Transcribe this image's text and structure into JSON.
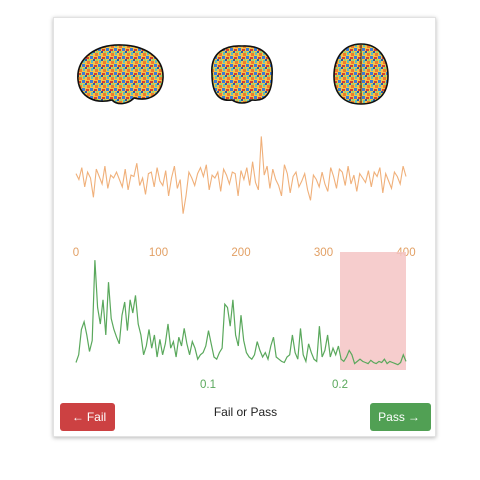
{
  "actions": {
    "fail_label": "Fail",
    "pass_label": "Pass",
    "prompt": "Fail or Pass",
    "fail_icon": "arrow-left-icon",
    "pass_icon": "arrow-right-icon"
  },
  "colors": {
    "timeseries": "#f0b07a",
    "timeseries_axis": "#e2a065",
    "spectrum": "#5aa85c",
    "highlight": "#f4c4c4",
    "fail": "#cc4142",
    "pass": "#51a054"
  },
  "brain_views": [
    "sagittal",
    "coronal",
    "axial"
  ],
  "chart_data": [
    {
      "type": "line",
      "name": "timeseries",
      "xlim": [
        0,
        400
      ],
      "x_ticks": [
        "0",
        "100",
        "200",
        "300",
        "400"
      ],
      "x_tick_values": [
        0,
        100,
        200,
        300,
        400
      ],
      "ylim": [
        -3.5,
        3.5
      ],
      "y": [
        0.5,
        0.1,
        0.9,
        -0.4,
        0.6,
        0.2,
        -1.1,
        0.8,
        0.3,
        -0.2,
        1.0,
        -0.5,
        0.4,
        0.2,
        0.6,
        0.1,
        -0.4,
        0.8,
        -0.6,
        0.4,
        0.3,
        1.2,
        -0.3,
        0.2,
        -0.9,
        0.5,
        0.6,
        -0.4,
        0.9,
        0.0,
        -0.3,
        0.7,
        -1.0,
        0.2,
        1.0,
        -0.5,
        0.1,
        -2.2,
        -1.0,
        0.6,
        0.2,
        -0.3,
        0.5,
        0.9,
        0.3,
        1.1,
        -0.6,
        0.4,
        0.2,
        0.6,
        -0.7,
        0.8,
        0.4,
        -0.2,
        0.6,
        0.5,
        -1.0,
        0.7,
        0.1,
        0.9,
        -0.3,
        1.3,
        -0.1,
        -0.6,
        3.0,
        0.4,
        1.0,
        -0.5,
        0.8,
        0.1,
        -0.3,
        -1.0,
        1.1,
        0.5,
        -0.8,
        0.3,
        0.6,
        -0.4,
        0.0,
        0.5,
        -0.6,
        -1.3,
        0.4,
        0.1,
        -0.4,
        0.6,
        -0.2,
        -0.7,
        0.9,
        0.3,
        -0.5,
        0.8,
        0.6,
        -0.3,
        1.0,
        -0.2,
        0.4,
        -0.7,
        0.5,
        0.2,
        -0.1,
        0.7,
        -0.4,
        0.6,
        0.3,
        0.9,
        -0.8,
        0.5,
        0.0,
        -0.5,
        0.6,
        0.3,
        -0.2,
        1.0,
        0.3
      ]
    },
    {
      "type": "line",
      "name": "power-spectrum",
      "xlim": [
        0,
        0.25
      ],
      "x_ticks": [
        "0.1",
        "0.2"
      ],
      "x_tick_values": [
        0.1,
        0.2
      ],
      "ylim": [
        0,
        1
      ],
      "highlight_range": [
        0.2,
        0.25
      ],
      "y": [
        0.05,
        0.12,
        0.35,
        0.42,
        0.3,
        0.15,
        0.25,
        0.98,
        0.55,
        0.4,
        0.62,
        0.3,
        0.78,
        0.45,
        0.35,
        0.28,
        0.22,
        0.48,
        0.6,
        0.34,
        0.62,
        0.5,
        0.66,
        0.4,
        0.3,
        0.12,
        0.2,
        0.35,
        0.18,
        0.3,
        0.1,
        0.26,
        0.12,
        0.22,
        0.4,
        0.18,
        0.24,
        0.1,
        0.28,
        0.2,
        0.36,
        0.22,
        0.12,
        0.24,
        0.18,
        0.08,
        0.12,
        0.14,
        0.2,
        0.34,
        0.22,
        0.1,
        0.08,
        0.14,
        0.18,
        0.58,
        0.55,
        0.38,
        0.62,
        0.3,
        0.2,
        0.48,
        0.25,
        0.14,
        0.1,
        0.08,
        0.12,
        0.24,
        0.16,
        0.1,
        0.14,
        0.08,
        0.2,
        0.28,
        0.1,
        0.08,
        0.06,
        0.05,
        0.1,
        0.12,
        0.3,
        0.14,
        0.08,
        0.36,
        0.12,
        0.06,
        0.22,
        0.14,
        0.08,
        0.06,
        0.38,
        0.1,
        0.16,
        0.3,
        0.1,
        0.18,
        0.12,
        0.2,
        0.08,
        0.06,
        0.1,
        0.16,
        0.12,
        0.04,
        0.06,
        0.08,
        0.06,
        0.05,
        0.04,
        0.07,
        0.05,
        0.04,
        0.06,
        0.05,
        0.08,
        0.04,
        0.06,
        0.05,
        0.04,
        0.03,
        0.05,
        0.12,
        0.06
      ]
    }
  ]
}
